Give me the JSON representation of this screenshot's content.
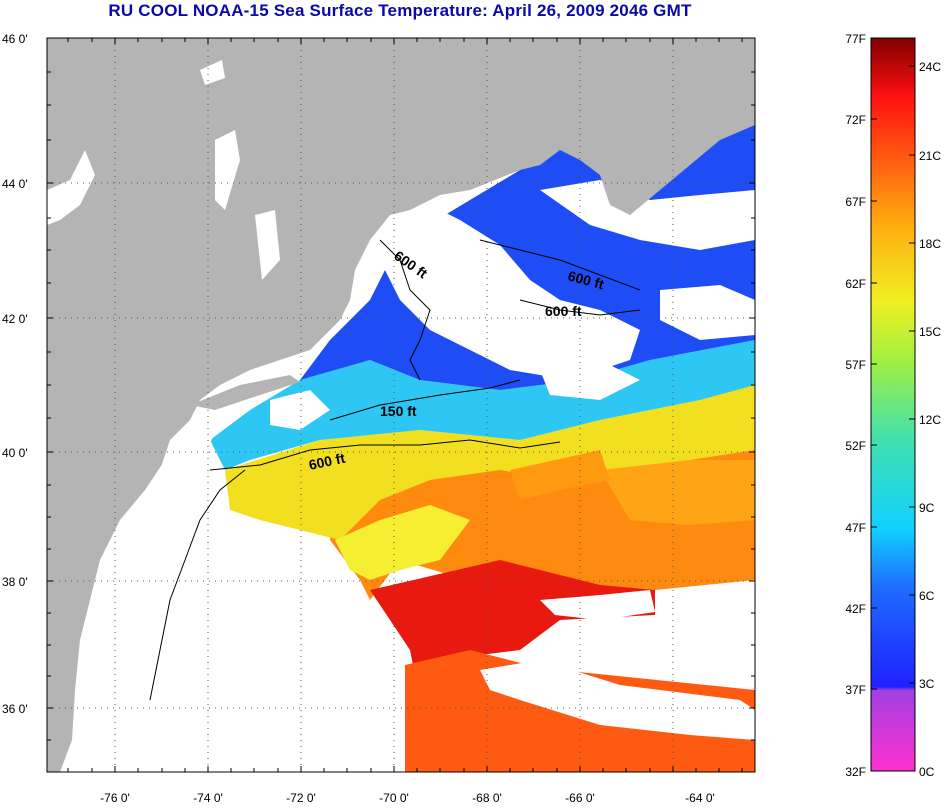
{
  "title": "RU COOL  NOAA-15  Sea Surface Temperature:  April 26, 2009 2046 GMT",
  "map": {
    "lat_ticks": [
      "46 0'",
      "44 0'",
      "42 0'",
      "40 0'",
      "38 0'",
      "36 0'"
    ],
    "lon_ticks": [
      "-76 0'",
      "-74 0'",
      "-72 0'",
      "-70 0'",
      "-68 0'",
      "-66 0'",
      "-64 0'"
    ],
    "contour_labels": [
      "600 ft",
      "600 ft",
      "600 ft",
      "150 ft",
      "600 ft"
    ],
    "colors": {
      "land": "#b4b4b4",
      "cloud": "#ffffff",
      "cold": "#1e3cff",
      "cool": "#27c8f0",
      "mild": "#f0e020",
      "warm": "#ff7a10",
      "hot": "#e01010"
    }
  },
  "colorbar": {
    "fahrenheit_labels": [
      "77F",
      "72F",
      "67F",
      "62F",
      "57F",
      "52F",
      "47F",
      "42F",
      "37F",
      "32F"
    ],
    "celsius_labels": [
      "24C",
      "21C",
      "18C",
      "15C",
      "12C",
      "9C",
      "6C",
      "3C",
      "0C"
    ]
  }
}
